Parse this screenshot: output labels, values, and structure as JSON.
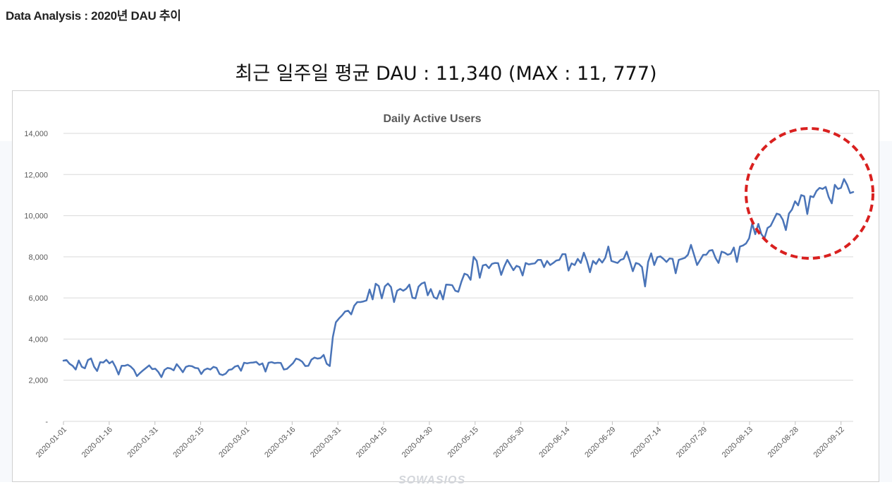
{
  "page": {
    "header": "Data Analysis : 2020년 DAU 추이",
    "headline": "최근 일주일 평균 DAU : 11,340 (MAX : 11, 777)",
    "watermark": "SOWASIOS"
  },
  "colors": {
    "line": "#4a74b8",
    "highlight_circle": "#d9201f",
    "grid": "#d9d9d9",
    "axis_text": "#595959"
  },
  "annotation": {
    "shape": "dashed-circle",
    "target": "recent period 2020-08-13 to 2020-09-16"
  },
  "chart_data": {
    "type": "line",
    "title": "Daily Active Users",
    "xlabel": "",
    "ylabel": "",
    "ylim": [
      0,
      14000
    ],
    "grid": true,
    "legend": "none",
    "y_ticks": [
      {
        "value": 0,
        "label": "-"
      },
      {
        "value": 2000,
        "label": "2,000"
      },
      {
        "value": 4000,
        "label": "4,000"
      },
      {
        "value": 6000,
        "label": "6,000"
      },
      {
        "value": 8000,
        "label": "8,000"
      },
      {
        "value": 10000,
        "label": "10,000"
      },
      {
        "value": 12000,
        "label": "12,000"
      },
      {
        "value": 14000,
        "label": "14,000"
      }
    ],
    "x_start": "2020-01-01",
    "x_end": "2020-09-16",
    "x_tick_labels": [
      "2020-01-01",
      "2020-01-16",
      "2020-01-31",
      "2020-02-15",
      "2020-03-01",
      "2020-03-16",
      "2020-03-31",
      "2020-04-15",
      "2020-04-30",
      "2020-05-15",
      "2020-05-30",
      "2020-06-14",
      "2020-06-29",
      "2020-07-14",
      "2020-07-29",
      "2020-08-13",
      "2020-08-28",
      "2020-09-12"
    ],
    "series": [
      {
        "values": [
          2950,
          2980,
          2800,
          2700,
          2520,
          2960,
          2650,
          2580,
          2980,
          3060,
          2660,
          2450,
          2880,
          2860,
          2990,
          2820,
          2920,
          2640,
          2280,
          2700,
          2700,
          2750,
          2660,
          2510,
          2200,
          2350,
          2480,
          2600,
          2720,
          2540,
          2560,
          2400,
          2150,
          2500,
          2600,
          2570,
          2480,
          2780,
          2600,
          2390,
          2650,
          2700,
          2680,
          2600,
          2580,
          2300,
          2500,
          2570,
          2520,
          2650,
          2600,
          2300,
          2250,
          2320,
          2500,
          2530,
          2660,
          2710,
          2460,
          2850,
          2820,
          2850,
          2860,
          2890,
          2750,
          2820,
          2420,
          2850,
          2880,
          2830,
          2850,
          2840,
          2520,
          2550,
          2690,
          2830,
          3050,
          3000,
          2900,
          2690,
          2700,
          3000,
          3100,
          3050,
          3080,
          3230,
          2800,
          2690,
          4100,
          4820,
          5000,
          5150,
          5340,
          5380,
          5200,
          5620,
          5800,
          5800,
          5830,
          5880,
          6410,
          5930,
          6690,
          6580,
          5980,
          6560,
          6700,
          6530,
          5800,
          6350,
          6440,
          6350,
          6450,
          6650,
          6010,
          5980,
          6550,
          6700,
          6760,
          6130,
          6430,
          6040,
          5960,
          6350,
          5930,
          6650,
          6640,
          6620,
          6350,
          6300,
          6790,
          7180,
          7120,
          6880,
          8000,
          7800,
          6980,
          7580,
          7620,
          7450,
          7660,
          7700,
          7690,
          7120,
          7530,
          7850,
          7600,
          7350,
          7560,
          7500,
          7090,
          7700,
          7630,
          7660,
          7680,
          7850,
          7850,
          7500,
          7800,
          7600,
          7700,
          7820,
          7850,
          8130,
          8130,
          7330,
          7680,
          7600,
          7900,
          7700,
          8200,
          7800,
          7250,
          7800,
          7650,
          7900,
          7720,
          7950,
          8500,
          7800,
          7750,
          7700,
          7850,
          7900,
          8250,
          7800,
          7300,
          7700,
          7650,
          7500,
          6560,
          7750,
          8170,
          7600,
          7980,
          8020,
          7900,
          7750,
          7920,
          7900,
          7200,
          7850,
          7900,
          7950,
          8100,
          8580,
          8100,
          7600,
          7850,
          8100,
          8100,
          8300,
          8330,
          7950,
          7700,
          8250,
          8200,
          8100,
          8150,
          8450,
          7750,
          8500,
          8550,
          8650,
          8900,
          9620,
          9100,
          9600,
          9100,
          8900,
          9400,
          9500,
          9800,
          10100,
          10050,
          9800,
          9300,
          10100,
          10300,
          10700,
          10500,
          11000,
          10950,
          10080,
          10950,
          10900,
          11200,
          11350,
          11300,
          11400,
          10900,
          10600,
          11500,
          11300,
          11350,
          11780,
          11500,
          11100,
          11150
        ]
      }
    ]
  }
}
